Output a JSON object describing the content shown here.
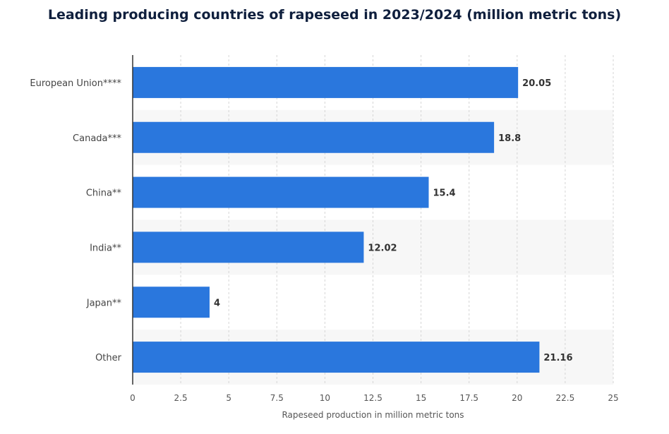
{
  "chart_data": {
    "type": "bar",
    "orientation": "horizontal",
    "title": "Leading producing countries of rapeseed in 2023/2024 (million metric tons)",
    "xlabel": "Rapeseed production in million metric tons",
    "ylabel": "",
    "categories": [
      "European Union****",
      "Canada***",
      "China**",
      "India**",
      "Japan**",
      "Other"
    ],
    "values": [
      20.05,
      18.8,
      15.4,
      12.02,
      4,
      21.16
    ],
    "data_labels": [
      "20.05",
      "18.8",
      "15.4",
      "12.02",
      "4",
      "21.16"
    ],
    "xlim": [
      0,
      25
    ],
    "xticks": [
      0,
      2.5,
      5,
      7.5,
      10,
      12.5,
      15,
      17.5,
      20,
      22.5,
      25
    ],
    "xtick_labels": [
      "0",
      "2.5",
      "5",
      "7.5",
      "10",
      "12.5",
      "15",
      "17.5",
      "20",
      "22.5",
      "25"
    ],
    "grid": "vertical dashed",
    "legend": "none",
    "bar_color": "#2a77dd",
    "band_color": "#f7f7f7",
    "title_color": "#0f1f3d"
  }
}
